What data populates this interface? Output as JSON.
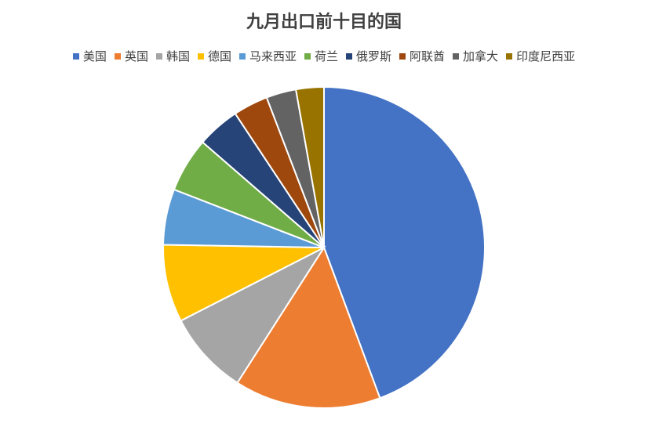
{
  "chart_data": {
    "type": "pie",
    "title": "九月出口前十目的国",
    "legend_position": "top",
    "categories": [
      "美国",
      "英国",
      "韩国",
      "德国",
      "马来西亚",
      "荷兰",
      "俄罗斯",
      "阿联酋",
      "加拿大",
      "印度尼西亚"
    ],
    "values": [
      44.3,
      14.7,
      8.4,
      7.8,
      5.6,
      5.5,
      4.3,
      3.5,
      3.0,
      2.8
    ],
    "colors": [
      "#4472C4",
      "#ED7D31",
      "#A5A5A5",
      "#FFC000",
      "#5B9BD5",
      "#70AD47",
      "#264478",
      "#9E480E",
      "#636363",
      "#997300"
    ]
  }
}
